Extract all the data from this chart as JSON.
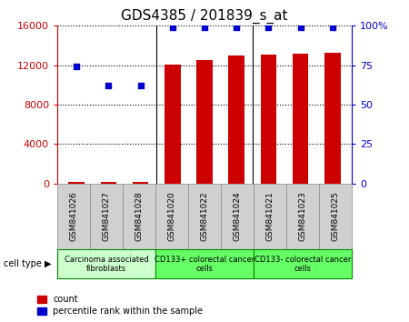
{
  "title": "GDS4385 / 201839_s_at",
  "samples": [
    "GSM841026",
    "GSM841027",
    "GSM841028",
    "GSM841020",
    "GSM841022",
    "GSM841024",
    "GSM841021",
    "GSM841023",
    "GSM841025"
  ],
  "counts": [
    120,
    200,
    150,
    12100,
    12500,
    13000,
    13100,
    13150,
    13300
  ],
  "percentiles": [
    74,
    62,
    62,
    99,
    99,
    99,
    99,
    99,
    99
  ],
  "ylim_left": [
    0,
    16000
  ],
  "ylim_right": [
    0,
    100
  ],
  "yticks_left": [
    0,
    4000,
    8000,
    12000,
    16000
  ],
  "yticks_right": [
    0,
    25,
    50,
    75,
    100
  ],
  "yticklabels_right": [
    "0",
    "25",
    "50",
    "75",
    "100%"
  ],
  "bar_color": "#cc0000",
  "dot_color": "#0000cc",
  "groups": [
    {
      "label": "Carcinoma associated\nfibroblasts",
      "start": 0,
      "end": 3,
      "color": "#ccffcc"
    },
    {
      "label": "CD133+ colorectal cancer\ncells",
      "start": 3,
      "end": 6,
      "color": "#66ff66"
    },
    {
      "label": "CD133- colorectal cancer\ncells",
      "start": 6,
      "end": 9,
      "color": "#66ff66"
    }
  ],
  "legend_count_label": "count",
  "legend_pct_label": "percentile rank within the sample",
  "cell_type_label": "cell type",
  "bar_color_left": "#cc0000",
  "axis_color_right": "#0000cc",
  "background_color": "#ffffff",
  "sample_box_color": "#d0d0d0",
  "sample_box_edge": "#888888",
  "group_edge_color": "#008800"
}
